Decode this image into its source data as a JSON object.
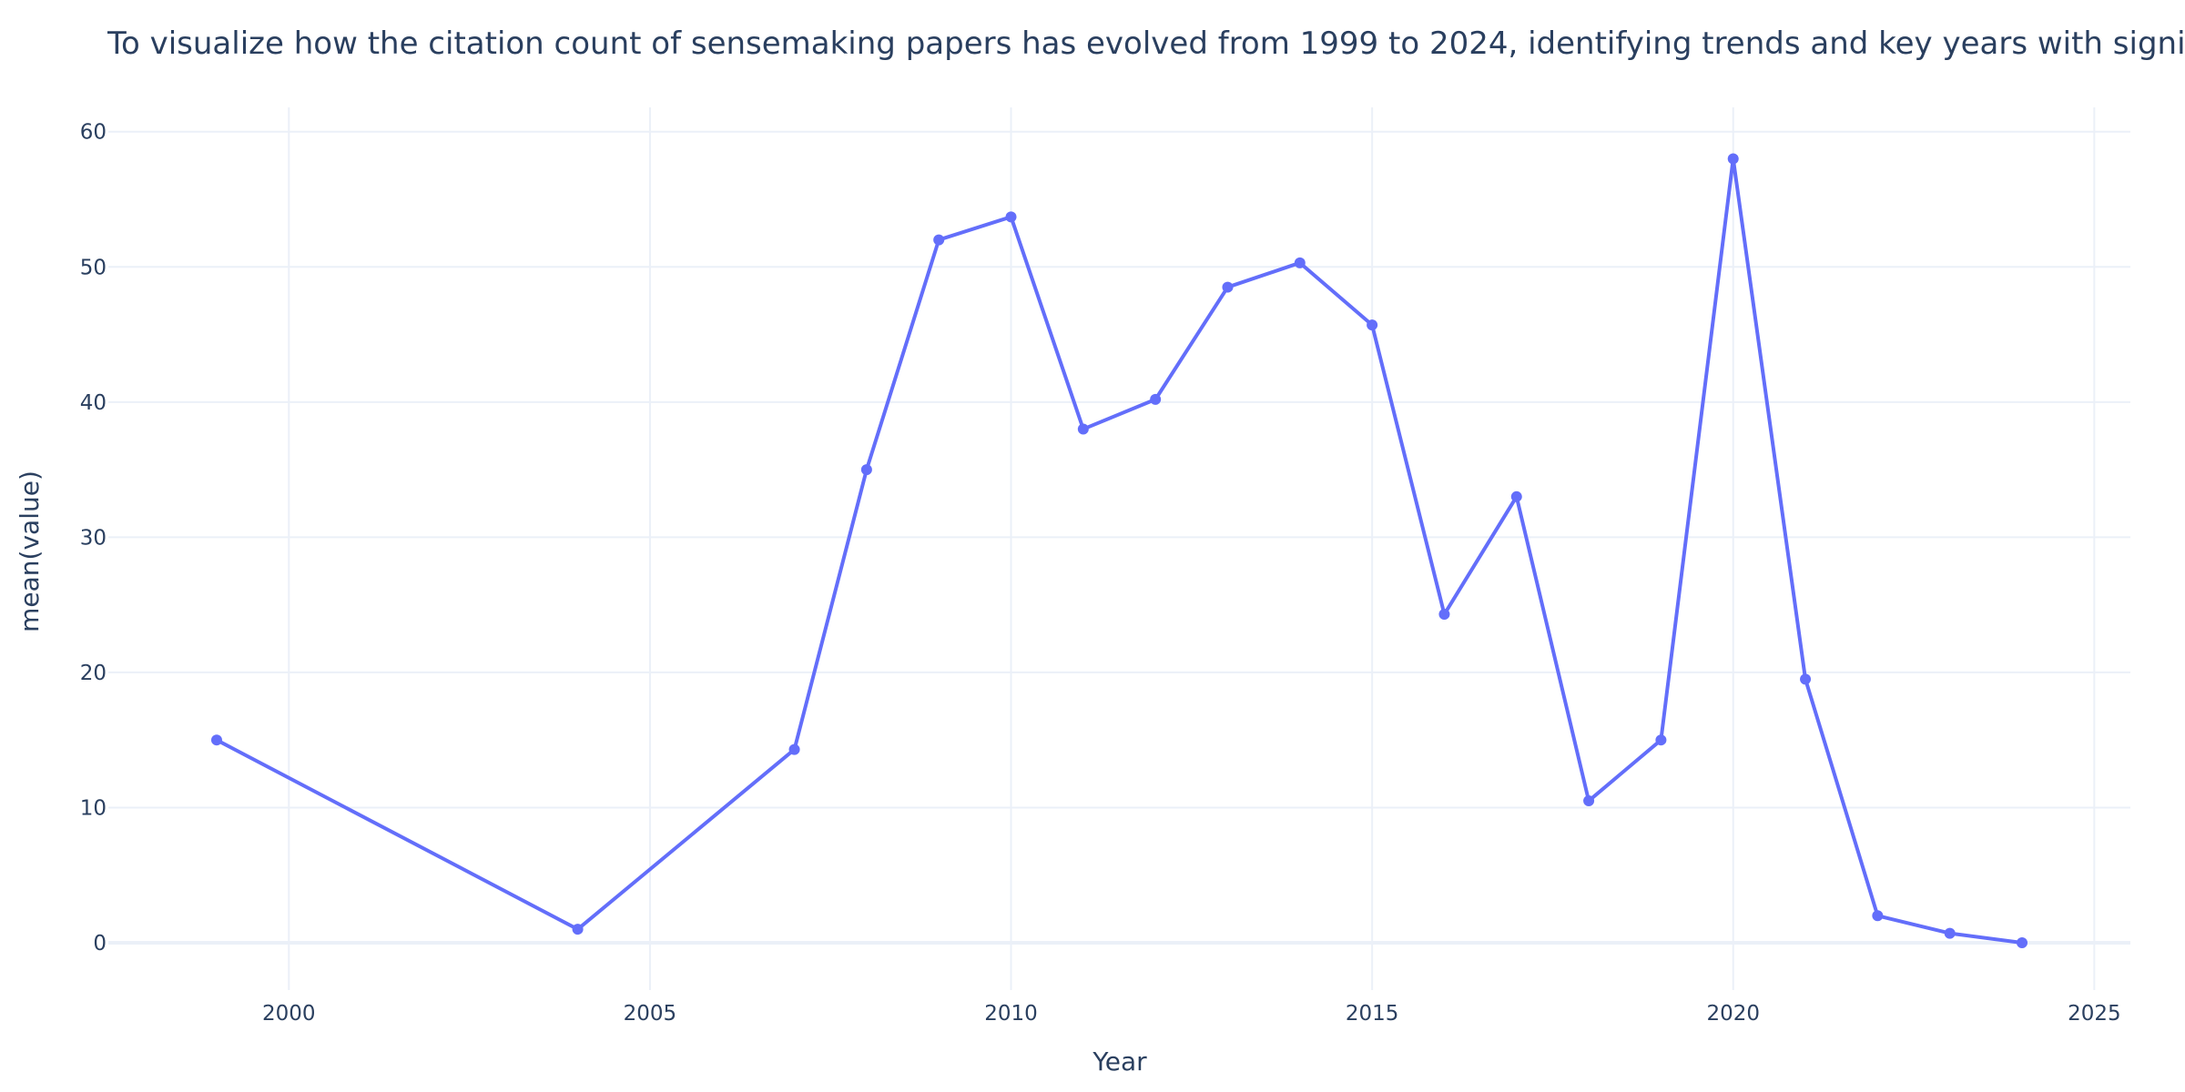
{
  "chart_data": {
    "type": "line",
    "title": "To visualize how the citation count of sensemaking papers has evolved from 1999 to 2024, identifying trends and key years with significant citation activity",
    "xlabel": "Year",
    "ylabel": "mean(value)",
    "xlim": [
      1997.5,
      2025.5
    ],
    "ylim": [
      -3.5,
      61.8
    ],
    "x_ticks": [
      2000,
      2005,
      2010,
      2015,
      2020,
      2025
    ],
    "y_ticks": [
      0,
      10,
      20,
      30,
      40,
      50,
      60
    ],
    "grid": true,
    "legend": "none",
    "line_color": "#636efa",
    "series": [
      {
        "x": [
          1999,
          2004,
          2007,
          2008,
          2009,
          2010,
          2011,
          2012,
          2013,
          2014,
          2015,
          2016,
          2017,
          2018,
          2019,
          2020,
          2021,
          2022,
          2023,
          2024
        ],
        "y": [
          15,
          1,
          14.3,
          35,
          52,
          53.7,
          38,
          40.2,
          48.5,
          50.3,
          45.7,
          24.3,
          33,
          10.5,
          15,
          58,
          19.5,
          2,
          0.7,
          0
        ]
      }
    ]
  }
}
